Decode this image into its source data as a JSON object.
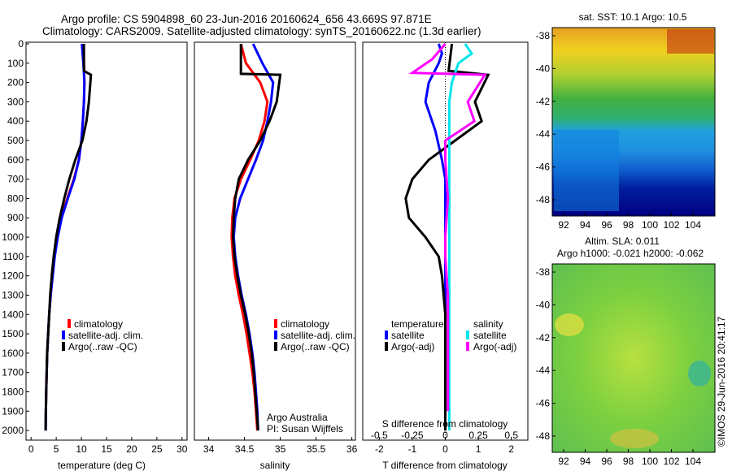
{
  "header": {
    "line1": "Argo profile: CS 5904898_60 23-Jun-2016 20160624_656 43.669S 97.871E",
    "line2": "Climatology: CARS2009. Satellite-adjusted climatology: synTS_20160622.nc (1.3d earlier)"
  },
  "colors": {
    "climatology": "#ff0000",
    "satellite": "#0000ff",
    "argo": "#000000",
    "sal_satellite": "#00e5ee",
    "sal_argo": "#ff00ff"
  },
  "depth_ticks": [
    "0",
    "100",
    "200",
    "300",
    "400",
    "500",
    "600",
    "700",
    "800",
    "900",
    "1000",
    "1100",
    "1200",
    "1300",
    "1400",
    "1500",
    "1600",
    "1700",
    "1800",
    "1900",
    "2000"
  ],
  "temperature_panel": {
    "xlabel": "temperature (deg C)",
    "xticks": [
      "0",
      "5",
      "10",
      "15",
      "20",
      "25",
      "30"
    ],
    "legend": [
      "climatology",
      "satellite-adj. clim.",
      "Argo(..raw -QC)"
    ]
  },
  "salinity_panel": {
    "xlabel": "salinity",
    "xticks": [
      "34",
      "34.5",
      "35",
      "35.5",
      "36"
    ],
    "legend": [
      "climatology",
      "satellite-adj. clim.",
      "Argo(..raw -QC)"
    ],
    "footer1": "Argo Australia",
    "footer2": "PI: Susan Wijffels"
  },
  "difference_panel": {
    "xlabel": "T difference from climatology",
    "xticks": [
      "-2",
      "-1",
      "0",
      "1",
      "2"
    ],
    "top_label": "S difference from climatology",
    "top_ticks": [
      "-0.5",
      "-0.25",
      "0",
      "0.25",
      "0.5"
    ],
    "legend_t_title": "temperature",
    "legend_t": [
      "satellite",
      "Argo(-adj)"
    ],
    "legend_s_title": "salinity",
    "legend_s": [
      "satellite",
      "Argo(-adj)"
    ]
  },
  "map_sst": {
    "title": "sat. SST: 10.1  Argo: 10.5",
    "yticks": [
      "-38",
      "-40",
      "-42",
      "-44",
      "-46",
      "-48"
    ],
    "xticks": [
      "92",
      "94",
      "96",
      "98",
      "100",
      "102",
      "104"
    ]
  },
  "map_sla": {
    "title1": "Altim. SLA: 0.011",
    "title2": "Argo h1000: -0.021 h2000: -0.062",
    "yticks": [
      "-38",
      "-40",
      "-42",
      "-44",
      "-46",
      "-48"
    ],
    "xticks": [
      "92",
      "94",
      "96",
      "98",
      "100",
      "102",
      "104"
    ]
  },
  "credit": "©IMOS 29-Jun-2016 20:41:17",
  "chart_data": [
    {
      "type": "line",
      "panel": "temperature",
      "xlabel": "temperature (deg C)",
      "xlim": [
        -1,
        31
      ],
      "ylim": [
        2050,
        0
      ],
      "series": [
        {
          "name": "climatology",
          "x": [
            10.3,
            10.5,
            10.6,
            10.5,
            10.3,
            10.0,
            9.5,
            8.5,
            7.2,
            6.0,
            5.2,
            4.6,
            4.2,
            3.9,
            3.6,
            3.4,
            3.2,
            3.1,
            3.0,
            2.95,
            2.9
          ],
          "y": [
            0,
            100,
            200,
            300,
            400,
            500,
            600,
            700,
            800,
            900,
            1000,
            1100,
            1200,
            1300,
            1400,
            1500,
            1600,
            1700,
            1800,
            1900,
            2000
          ]
        },
        {
          "name": "satellite-adj. clim.",
          "x": [
            10.1,
            10.4,
            10.6,
            10.5,
            10.3,
            10.0,
            9.5,
            8.6,
            7.3,
            6.1,
            5.3,
            4.7,
            4.3,
            3.9,
            3.6,
            3.4,
            3.2,
            3.1,
            3.0,
            2.95,
            2.9
          ],
          "y": [
            0,
            100,
            200,
            300,
            400,
            500,
            600,
            700,
            800,
            900,
            1000,
            1100,
            1200,
            1300,
            1400,
            1500,
            1600,
            1700,
            1800,
            1900,
            2000
          ]
        },
        {
          "name": "Argo(..raw -QC)",
          "x": [
            10.5,
            10.5,
            11.9,
            11.5,
            11.0,
            10.2,
            8.8,
            7.6,
            6.6,
            5.7,
            5.0,
            4.5,
            4.1,
            3.8,
            3.6,
            3.4,
            3.2,
            3.1,
            3.0,
            2.95,
            2.9
          ],
          "y": [
            0,
            140,
            160,
            300,
            400,
            500,
            600,
            700,
            800,
            900,
            1000,
            1100,
            1200,
            1300,
            1400,
            1500,
            1600,
            1700,
            1800,
            1900,
            2000
          ]
        }
      ]
    },
    {
      "type": "line",
      "panel": "salinity",
      "xlabel": "salinity",
      "xlim": [
        33.8,
        36.05
      ],
      "ylim": [
        2050,
        0
      ],
      "series": [
        {
          "name": "climatology",
          "x": [
            34.45,
            34.52,
            34.72,
            34.82,
            34.78,
            34.7,
            34.58,
            34.45,
            34.36,
            34.33,
            34.32,
            34.34,
            34.37,
            34.42,
            34.48,
            34.53,
            34.57,
            34.61,
            34.64,
            34.66,
            34.68
          ],
          "y": [
            0,
            100,
            200,
            300,
            400,
            500,
            600,
            700,
            800,
            900,
            1000,
            1100,
            1200,
            1300,
            1400,
            1500,
            1600,
            1700,
            1800,
            1900,
            2000
          ]
        },
        {
          "name": "satellite-adj. clim.",
          "x": [
            34.62,
            34.75,
            34.9,
            34.87,
            34.82,
            34.76,
            34.66,
            34.55,
            34.44,
            34.37,
            34.35,
            34.37,
            34.41,
            34.46,
            34.52,
            34.57,
            34.61,
            34.64,
            34.66,
            34.68,
            34.69
          ],
          "y": [
            0,
            100,
            200,
            300,
            400,
            500,
            600,
            700,
            800,
            900,
            1000,
            1100,
            1200,
            1300,
            1400,
            1500,
            1600,
            1700,
            1800,
            1900,
            2000
          ]
        },
        {
          "name": "Argo(..raw -QC)",
          "x": [
            34.45,
            34.45,
            35.0,
            34.95,
            34.85,
            34.72,
            34.55,
            34.42,
            34.37,
            34.35,
            34.34,
            34.36,
            34.4,
            34.45,
            34.51,
            34.56,
            34.6,
            34.63,
            34.65,
            34.67,
            34.69
          ],
          "y": [
            0,
            155,
            160,
            300,
            400,
            500,
            600,
            700,
            800,
            900,
            1000,
            1100,
            1200,
            1300,
            1400,
            1500,
            1600,
            1700,
            1800,
            1900,
            2000
          ]
        }
      ]
    },
    {
      "type": "line",
      "panel": "difference",
      "xlabel": "T difference from climatology",
      "xlim": [
        -2.5,
        2.5
      ],
      "ylim": [
        2050,
        0
      ],
      "series": [
        {
          "name": "temperature satellite",
          "axis": "T",
          "x": [
            -0.2,
            -0.1,
            -0.2,
            -0.5,
            -0.6,
            -0.3,
            -0.1,
            0.0,
            0.0,
            0.0,
            0.0,
            0.0,
            0.0,
            0.0,
            0.0,
            0.0,
            0.0,
            0.0,
            0.0,
            0.0,
            0.0
          ],
          "y": [
            0,
            50,
            100,
            200,
            300,
            450,
            600,
            700,
            800,
            900,
            1000,
            1100,
            1200,
            1300,
            1400,
            1500,
            1600,
            1700,
            1800,
            1900,
            2000
          ]
        },
        {
          "name": "temperature Argo(-adj)",
          "axis": "T",
          "x": [
            0.2,
            0.1,
            1.3,
            0.9,
            1.1,
            0.3,
            -0.5,
            -1.0,
            -1.2,
            -1.1,
            -0.6,
            -0.2,
            -0.1,
            -0.05,
            0.0,
            0.0,
            0.0,
            0.0,
            0.0,
            0.0,
            0.0
          ],
          "y": [
            0,
            140,
            160,
            300,
            400,
            500,
            600,
            700,
            800,
            900,
            1000,
            1100,
            1200,
            1300,
            1400,
            1500,
            1600,
            1700,
            1800,
            1900,
            2000
          ]
        },
        {
          "name": "salinity satellite",
          "axis": "S",
          "x": [
            0.15,
            0.2,
            0.1,
            0.05,
            0.03,
            0.03,
            0.03,
            0.03,
            0.03,
            0.03,
            0.03,
            0.03,
            0.03,
            0.03,
            0.03,
            0.03,
            0.03,
            0.03,
            0.03,
            0.03,
            0.03
          ],
          "y": [
            0,
            50,
            100,
            200,
            300,
            450,
            600,
            700,
            800,
            900,
            1000,
            1100,
            1200,
            1300,
            1400,
            1500,
            1600,
            1700,
            1800,
            1900,
            2000
          ]
        },
        {
          "name": "salinity Argo(-adj)",
          "axis": "S",
          "x": [
            0.0,
            -0.1,
            -0.25,
            0.3,
            0.17,
            0.22,
            0.0,
            0.0,
            0.01,
            0.02,
            0.01,
            0.0,
            0.0,
            0.01,
            0.02,
            0.02,
            0.02,
            0.02,
            0.02,
            0.02,
            0.02
          ],
          "y": [
            0,
            80,
            150,
            160,
            300,
            400,
            500,
            600,
            700,
            800,
            900,
            1000,
            1100,
            1200,
            1300,
            1400,
            1500,
            1600,
            1700,
            1800,
            1900
          ]
        }
      ]
    }
  ]
}
